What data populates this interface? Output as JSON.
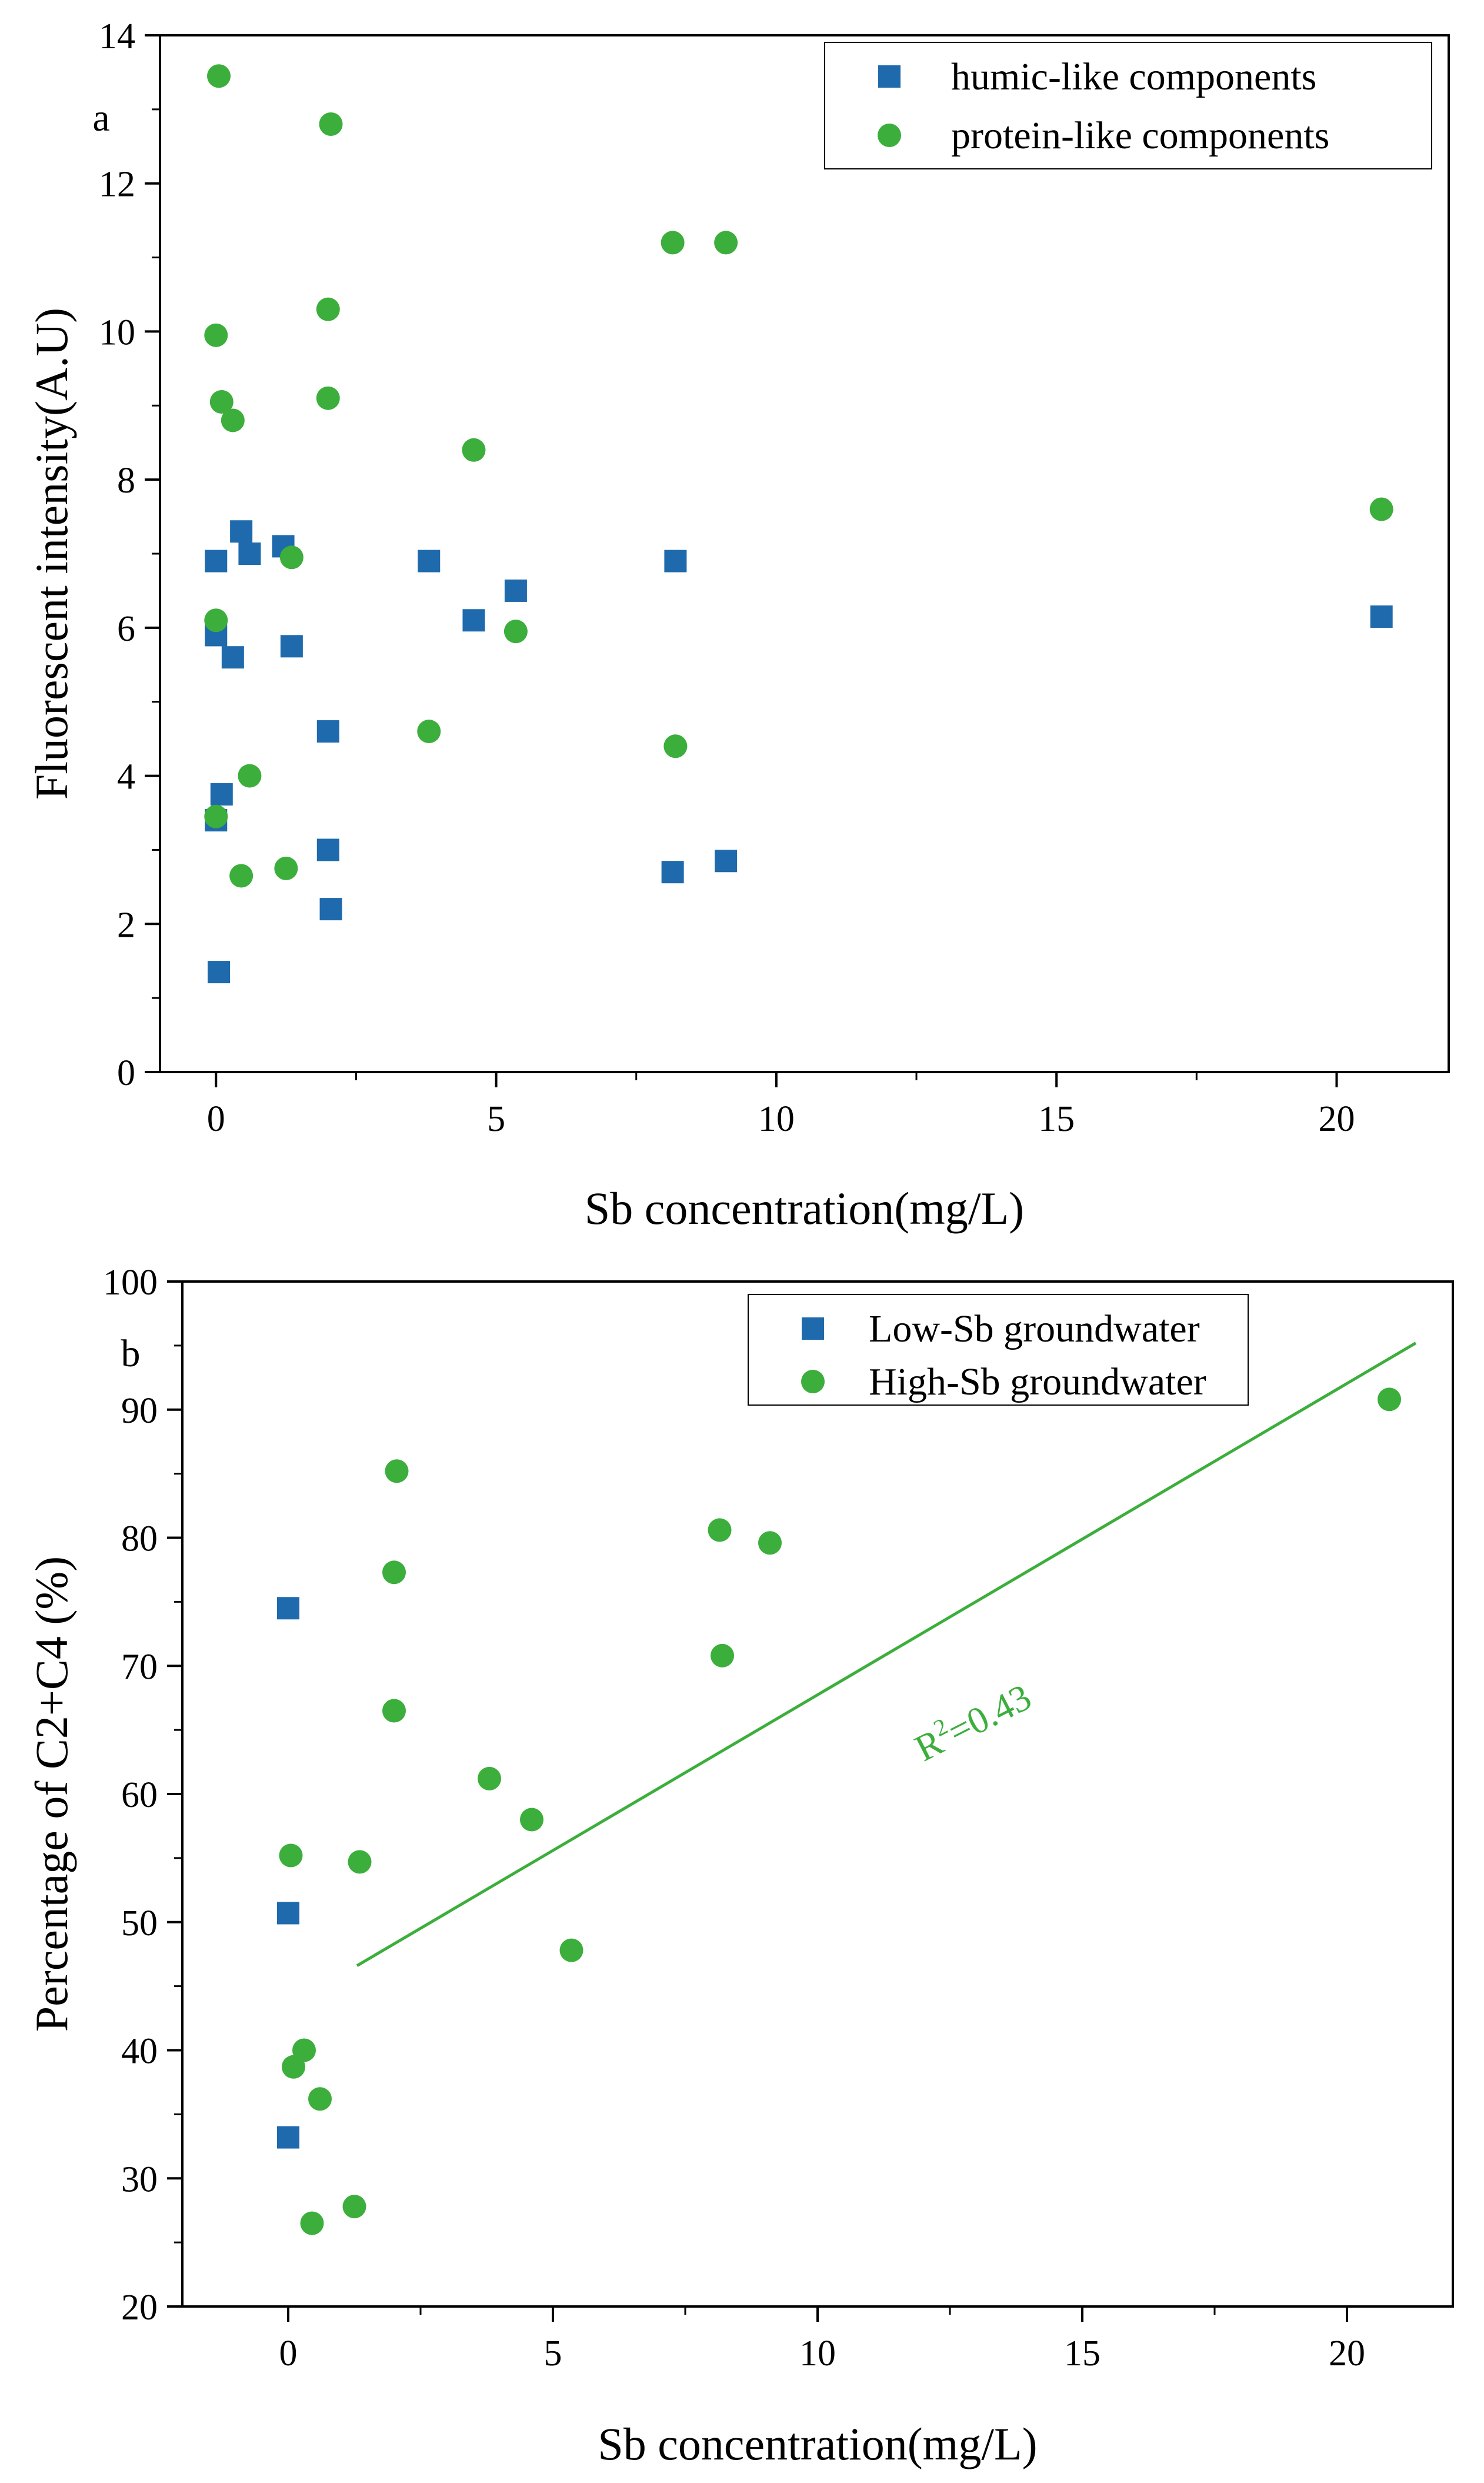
{
  "colors": {
    "humic": "#1e6aad",
    "protein": "#3cae3c",
    "axis": "#000000",
    "fit_line": "#3cae3c"
  },
  "chart_data": [
    {
      "type": "scatter",
      "panel_label": "a",
      "xlabel": "Sb concentration(mg/L)",
      "ylabel": "Fluorescent intensity(A.U)",
      "xlim": [
        -1,
        22
      ],
      "ylim": [
        0,
        14
      ],
      "xticks": [
        0,
        5,
        10,
        15,
        20
      ],
      "yticks": [
        0,
        2,
        4,
        6,
        8,
        10,
        12,
        14
      ],
      "legend": "top-right",
      "grid": false,
      "series": [
        {
          "name": "humic-like components",
          "marker": "square",
          "color": "#1e6aad",
          "points": [
            [
              0.0,
              6.9
            ],
            [
              0.0,
              5.9
            ],
            [
              0.0,
              3.4
            ],
            [
              0.1,
              3.75
            ],
            [
              0.05,
              1.35
            ],
            [
              0.3,
              5.6
            ],
            [
              0.45,
              7.3
            ],
            [
              0.6,
              7.0
            ],
            [
              1.2,
              7.1
            ],
            [
              1.35,
              5.75
            ],
            [
              2.0,
              4.6
            ],
            [
              2.0,
              3.0
            ],
            [
              2.05,
              2.2
            ],
            [
              3.8,
              6.9
            ],
            [
              4.6,
              6.1
            ],
            [
              5.35,
              6.5
            ],
            [
              8.2,
              6.9
            ],
            [
              8.15,
              2.7
            ],
            [
              9.1,
              2.85
            ],
            [
              20.8,
              6.15
            ]
          ]
        },
        {
          "name": "protein-like components",
          "marker": "circle",
          "color": "#3cae3c",
          "points": [
            [
              0.05,
              13.45
            ],
            [
              2.05,
              12.8
            ],
            [
              0.0,
              9.95
            ],
            [
              0.1,
              9.05
            ],
            [
              0.3,
              8.8
            ],
            [
              2.0,
              10.3
            ],
            [
              2.0,
              9.1
            ],
            [
              0.0,
              6.1
            ],
            [
              0.0,
              3.45
            ],
            [
              0.45,
              2.65
            ],
            [
              0.6,
              4.0
            ],
            [
              1.25,
              2.75
            ],
            [
              1.35,
              6.95
            ],
            [
              3.8,
              4.6
            ],
            [
              4.6,
              8.4
            ],
            [
              5.35,
              5.95
            ],
            [
              8.15,
              11.2
            ],
            [
              9.1,
              11.2
            ],
            [
              8.2,
              4.4
            ],
            [
              20.8,
              7.6
            ]
          ]
        }
      ]
    },
    {
      "type": "scatter",
      "panel_label": "b",
      "xlabel": "Sb concentration(mg/L)",
      "ylabel": "Percentage of C2+C4 (%)",
      "xlim": [
        -2,
        22
      ],
      "ylim": [
        20,
        100
      ],
      "xticks": [
        0,
        5,
        10,
        15,
        20
      ],
      "yticks": [
        20,
        30,
        40,
        50,
        60,
        70,
        80,
        90,
        100
      ],
      "legend": "top-right",
      "grid": false,
      "series": [
        {
          "name": "Low-Sb groundwater",
          "marker": "square",
          "color": "#1e6aad",
          "points": [
            [
              0.0,
              74.5
            ],
            [
              0.0,
              50.7
            ],
            [
              0.0,
              33.2
            ]
          ]
        },
        {
          "name": "High-Sb groundwater",
          "marker": "circle",
          "color": "#3cae3c",
          "points": [
            [
              2.05,
              85.2
            ],
            [
              2.0,
              77.3
            ],
            [
              2.0,
              66.5
            ],
            [
              0.05,
              55.2
            ],
            [
              1.35,
              54.7
            ],
            [
              0.3,
              40.0
            ],
            [
              0.1,
              38.7
            ],
            [
              0.6,
              36.2
            ],
            [
              0.45,
              26.5
            ],
            [
              1.25,
              27.8
            ],
            [
              3.8,
              61.2
            ],
            [
              4.6,
              58.0
            ],
            [
              5.35,
              47.8
            ],
            [
              8.15,
              80.6
            ],
            [
              9.1,
              79.6
            ],
            [
              8.2,
              70.8
            ],
            [
              20.8,
              90.8
            ]
          ]
        }
      ],
      "trendline": {
        "x": [
          1.3,
          21.3
        ],
        "y": [
          46.6,
          95.2
        ]
      },
      "annotation": {
        "r2_prefix": "R",
        "r2_exp": "2",
        "r2_value": "=0.43"
      }
    }
  ]
}
